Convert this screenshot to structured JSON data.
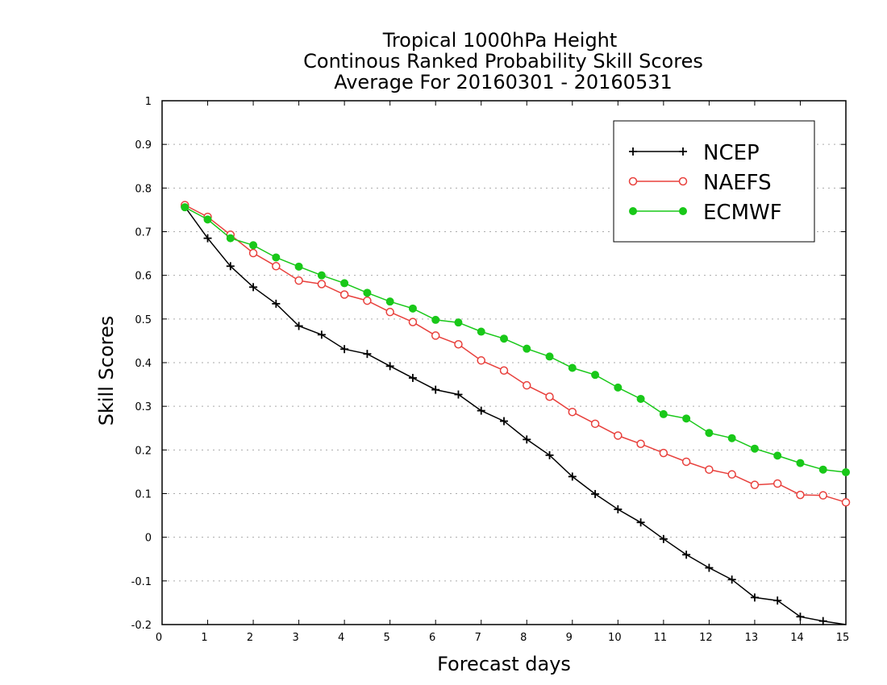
{
  "chart_data": {
    "type": "line",
    "title_lines": [
      "Tropical 1000hPa Height",
      "Continous Ranked Probability Skill Scores",
      "Average For 20160301 - 20160531"
    ],
    "xlabel": "Forecast days",
    "ylabel": "Skill Scores",
    "xlim": [
      0,
      15
    ],
    "ylim": [
      -0.2,
      1
    ],
    "x_ticks": [
      0,
      1,
      2,
      3,
      4,
      5,
      6,
      7,
      8,
      9,
      10,
      11,
      12,
      13,
      14,
      15
    ],
    "x_tick_labels": [
      "0",
      "1",
      "2",
      "3",
      "4",
      "5",
      "6",
      "7",
      "8",
      "9",
      "10",
      "11",
      "12",
      "13",
      "14",
      "15"
    ],
    "y_ticks": [
      -0.2,
      -0.1,
      0,
      0.1,
      0.2,
      0.3,
      0.4,
      0.5,
      0.6,
      0.7,
      0.8,
      0.9,
      1
    ],
    "y_tick_labels": [
      "-0.2",
      "-0.1",
      "0",
      "0.1",
      "0.2",
      "0.3",
      "0.4",
      "0.5",
      "0.6",
      "0.7",
      "0.8",
      "0.9",
      "1"
    ],
    "grid": "horizontal dotted",
    "legend_position": "top-right",
    "x": [
      0.5,
      1,
      1.5,
      2,
      2.5,
      3,
      3.5,
      4,
      4.5,
      5,
      5.5,
      6,
      6.5,
      7,
      7.5,
      8,
      8.5,
      9,
      9.5,
      10,
      10.5,
      11,
      11.5,
      12,
      12.5,
      13,
      13.5,
      14,
      14.5,
      15
    ],
    "series": [
      {
        "name": "NCEP",
        "color": "#000000",
        "marker": "plus",
        "values": [
          0.757,
          0.685,
          0.621,
          0.573,
          0.535,
          0.484,
          0.464,
          0.431,
          0.42,
          0.392,
          0.365,
          0.338,
          0.327,
          0.29,
          0.266,
          0.224,
          0.188,
          0.139,
          0.099,
          0.064,
          0.034,
          -0.004,
          -0.04,
          -0.07,
          -0.097,
          -0.138,
          -0.145,
          -0.182,
          -0.192,
          -0.205
        ]
      },
      {
        "name": "NAEFS",
        "color": "#e8403c",
        "marker": "open-circle",
        "values": [
          0.761,
          0.734,
          0.693,
          0.651,
          0.621,
          0.588,
          0.58,
          0.556,
          0.542,
          0.516,
          0.493,
          0.462,
          0.442,
          0.405,
          0.382,
          0.348,
          0.322,
          0.287,
          0.26,
          0.233,
          0.214,
          0.193,
          0.173,
          0.155,
          0.144,
          0.12,
          0.123,
          0.097,
          0.096,
          0.08
        ]
      },
      {
        "name": "ECMWF",
        "color": "#19c819",
        "marker": "filled-circle",
        "values": [
          0.756,
          0.728,
          0.685,
          0.669,
          0.641,
          0.62,
          0.6,
          0.582,
          0.56,
          0.54,
          0.524,
          0.498,
          0.492,
          0.471,
          0.455,
          0.432,
          0.414,
          0.388,
          0.372,
          0.343,
          0.317,
          0.282,
          0.272,
          0.239,
          0.227,
          0.203,
          0.187,
          0.17,
          0.155,
          0.149
        ]
      }
    ]
  }
}
